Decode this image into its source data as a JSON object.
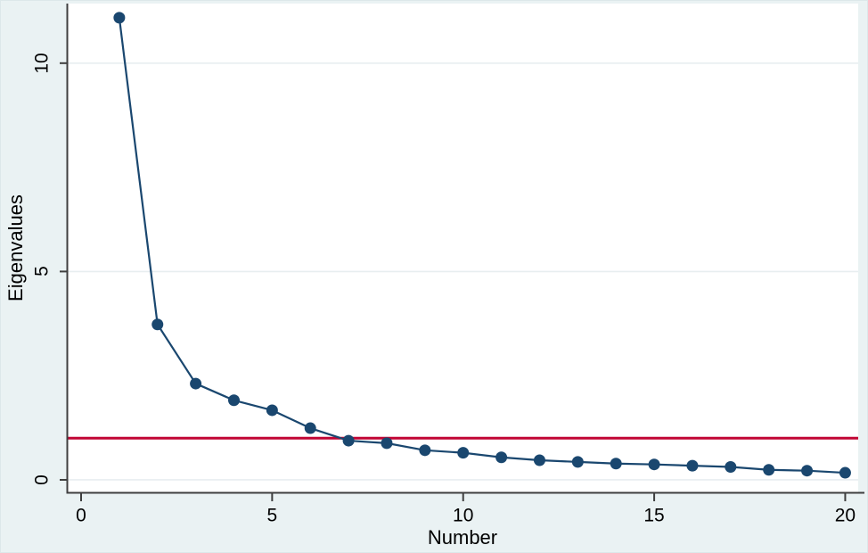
{
  "figure": {
    "background_color": "#eaf2f3",
    "plot_background_color": "#ffffff",
    "axis_color": "#3f3f3f",
    "grid_color": "#e8eef0",
    "text_color": "#000000"
  },
  "chart_data": {
    "type": "line",
    "title": "",
    "xlabel": "Number",
    "ylabel": "Eigenvalues",
    "series": [
      {
        "name": "Eigenvalues",
        "color": "#1a476f",
        "marker": "filled-circle",
        "x": [
          1,
          2,
          3,
          4,
          5,
          6,
          7,
          8,
          9,
          10,
          11,
          12,
          13,
          14,
          15,
          16,
          17,
          18,
          19,
          20
        ],
        "y": [
          11.09,
          3.73,
          2.31,
          1.91,
          1.67,
          1.24,
          0.94,
          0.88,
          0.71,
          0.65,
          0.54,
          0.47,
          0.43,
          0.39,
          0.37,
          0.34,
          0.31,
          0.24,
          0.22,
          0.17
        ]
      }
    ],
    "reference_line": {
      "y": 1,
      "color": "#c10534",
      "orientation": "horizontal"
    },
    "xticks": [
      0,
      5,
      10,
      15,
      20
    ],
    "yticks": [
      0,
      5,
      10
    ],
    "xlim": [
      -0.35,
      20.34
    ],
    "ylim": [
      -0.3,
      11.43
    ],
    "grid": "horizontal-only",
    "legend": "none",
    "tick_label_orientation": {
      "x": "horizontal",
      "y": "rotated-90"
    }
  }
}
